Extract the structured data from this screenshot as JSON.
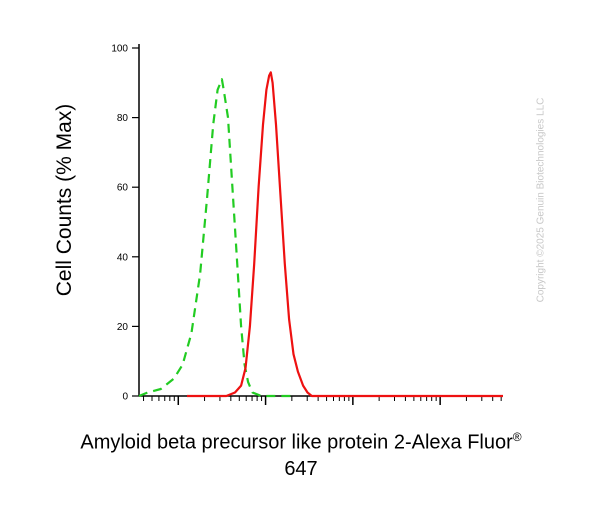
{
  "chart_data": {
    "type": "line",
    "xlabel": "Amyloid beta precursor like protein 2-Alexa Fluor",
    "xlabel_superscript": "®",
    "xlabel_line2": "647",
    "ylabel": "Cell Counts (% Max)",
    "ylim": [
      0,
      100
    ],
    "y_ticks": [
      "0",
      "20",
      "40",
      "60",
      "80",
      "100"
    ],
    "x_scale": "log",
    "x_major_ticks": [
      0,
      1,
      2,
      3
    ],
    "x_range_decades": [
      -0.45,
      3.72
    ],
    "grid": false,
    "legend": "none",
    "series": [
      {
        "style": "dashed",
        "color": "#22cc22",
        "points": [
          [
            -0.45,
            0
          ],
          [
            -0.35,
            1
          ],
          [
            -0.2,
            2
          ],
          [
            -0.05,
            5
          ],
          [
            0.05,
            9
          ],
          [
            0.15,
            18
          ],
          [
            0.25,
            35
          ],
          [
            0.33,
            57
          ],
          [
            0.4,
            78
          ],
          [
            0.45,
            88
          ],
          [
            0.5,
            91
          ],
          [
            0.52,
            88
          ],
          [
            0.57,
            80
          ],
          [
            0.62,
            60
          ],
          [
            0.67,
            40
          ],
          [
            0.72,
            20
          ],
          [
            0.76,
            9
          ],
          [
            0.8,
            4
          ],
          [
            0.85,
            1
          ],
          [
            0.95,
            0
          ],
          [
            1.3,
            0
          ]
        ]
      },
      {
        "style": "solid",
        "color": "#ee1111",
        "points": [
          [
            0.1,
            0
          ],
          [
            0.4,
            0
          ],
          [
            0.55,
            0
          ],
          [
            0.65,
            1
          ],
          [
            0.72,
            3
          ],
          [
            0.77,
            8
          ],
          [
            0.82,
            20
          ],
          [
            0.87,
            38
          ],
          [
            0.92,
            60
          ],
          [
            0.97,
            78
          ],
          [
            1.01,
            88
          ],
          [
            1.04,
            92
          ],
          [
            1.06,
            93
          ],
          [
            1.08,
            90
          ],
          [
            1.12,
            78
          ],
          [
            1.17,
            58
          ],
          [
            1.22,
            38
          ],
          [
            1.27,
            22
          ],
          [
            1.32,
            12
          ],
          [
            1.37,
            7
          ],
          [
            1.43,
            3
          ],
          [
            1.48,
            1
          ],
          [
            1.53,
            0
          ],
          [
            1.8,
            0
          ],
          [
            3.72,
            0
          ]
        ]
      }
    ]
  },
  "watermark": "Copyright ©2025 Genuin Biotechnologies LLC"
}
